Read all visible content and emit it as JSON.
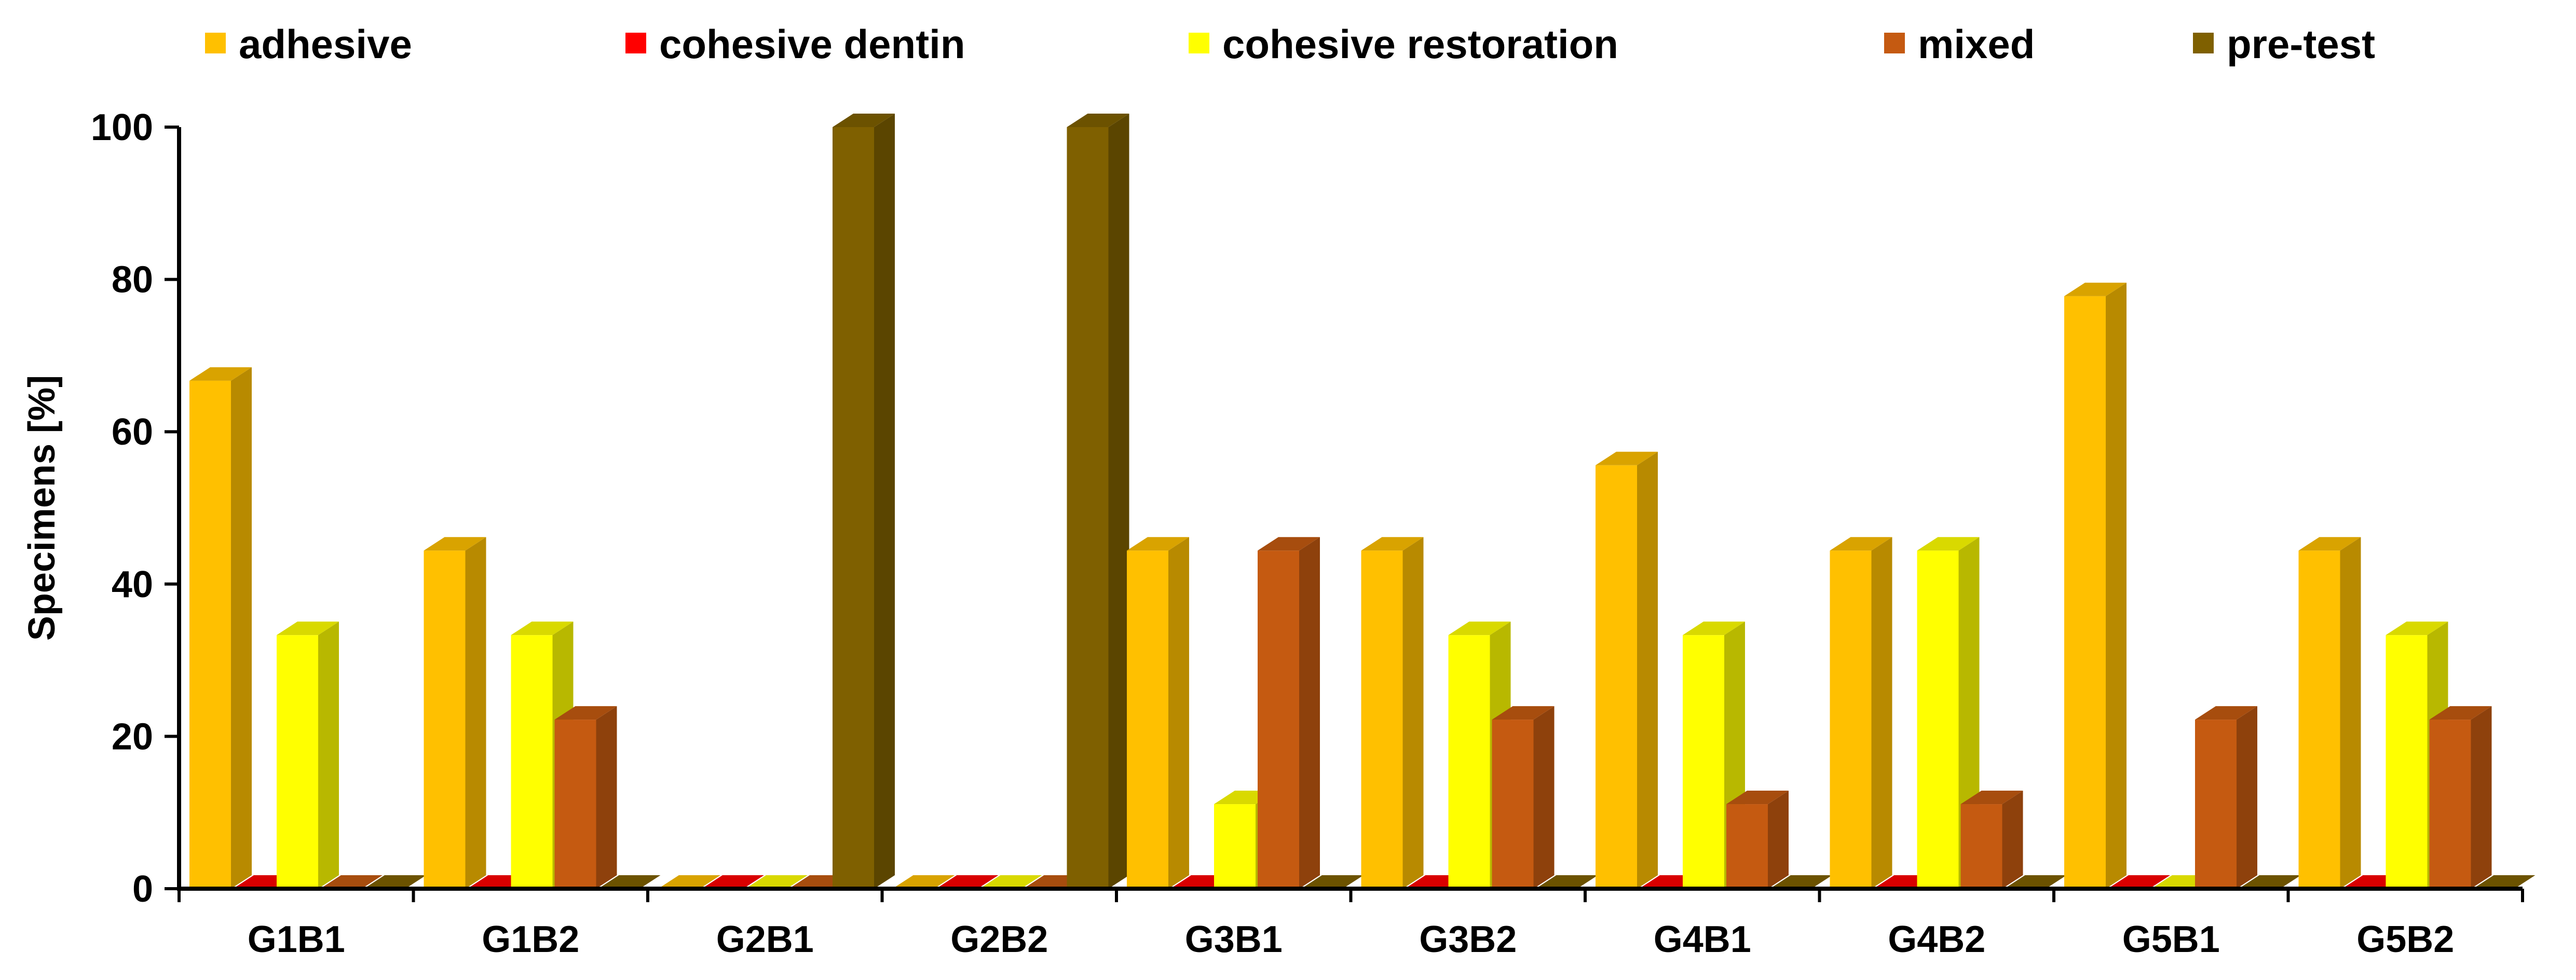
{
  "chart_data": {
    "type": "bar",
    "title": "",
    "xlabel": "",
    "ylabel": "Specimens [%]",
    "ylim": [
      0,
      100
    ],
    "yticks": [
      "0",
      "20",
      "40",
      "60",
      "80",
      "100"
    ],
    "categories": [
      "G1B1",
      "G1B2",
      "G2B1",
      "G2B2",
      "G3B1",
      "G3B2",
      "G4B1",
      "G4B2",
      "G5B1",
      "G5B2"
    ],
    "legend_position": "top",
    "grid": false,
    "series": [
      {
        "name": "adhesive",
        "color": "#FFC000",
        "values": [
          66.7,
          44.4,
          0,
          0,
          44.4,
          44.4,
          55.6,
          44.4,
          77.8,
          44.4
        ]
      },
      {
        "name": "cohesive dentin",
        "color": "#FF0000",
        "values": [
          0,
          0,
          0,
          0,
          0,
          0,
          0,
          0,
          0,
          0
        ]
      },
      {
        "name": "cohesive restoration",
        "color": "#FFFF00",
        "values": [
          33.3,
          33.3,
          0,
          0,
          11.1,
          33.3,
          33.3,
          44.4,
          0,
          33.3
        ]
      },
      {
        "name": "mixed",
        "color": "#C55A11",
        "values": [
          0,
          22.2,
          0,
          0,
          44.4,
          22.2,
          11.1,
          11.1,
          22.2,
          22.2
        ]
      },
      {
        "name": "pre-test",
        "color": "#7F6000",
        "values": [
          0,
          0,
          100,
          100,
          0,
          0,
          0,
          0,
          0,
          0
        ]
      }
    ]
  }
}
